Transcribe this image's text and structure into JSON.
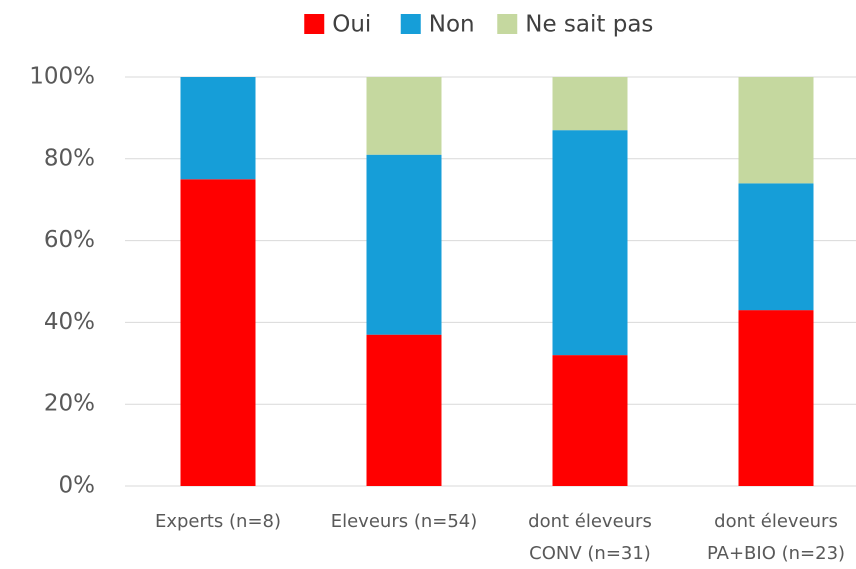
{
  "chart_data": {
    "type": "stacked_bar",
    "categories": [
      [
        "Experts (n=8)"
      ],
      [
        "Eleveurs (n=54)"
      ],
      [
        "dont éleveurs",
        "CONV (n=31)"
      ],
      [
        "dont éleveurs",
        "PA+BIO (n=23)"
      ]
    ],
    "series": [
      {
        "name": "Oui",
        "color": "#ff0000",
        "values": [
          75,
          37,
          32,
          43
        ]
      },
      {
        "name": "Non",
        "color": "#169ed8",
        "values": [
          25,
          44,
          55,
          31
        ]
      },
      {
        "name": "Ne sait pas",
        "color": "#c5d89f",
        "values": [
          0,
          19,
          13,
          26
        ]
      }
    ],
    "ylim": [
      0,
      100
    ],
    "yticks": [
      {
        "value": 0,
        "label": "0%"
      },
      {
        "value": 20,
        "label": "20%"
      },
      {
        "value": 40,
        "label": "40%"
      },
      {
        "value": 60,
        "label": "60%"
      },
      {
        "value": 80,
        "label": "80%"
      },
      {
        "value": 100,
        "label": "100%"
      }
    ],
    "grid": true,
    "legend": "top"
  }
}
